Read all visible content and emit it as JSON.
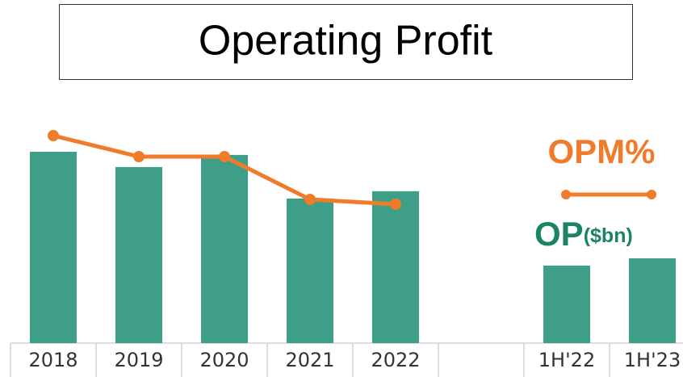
{
  "chart_data": {
    "type": "bar",
    "title": "Operating Profit",
    "categories": [
      "2018",
      "2019",
      "2020",
      "2021",
      "2022",
      null,
      "1H'22",
      "1H'23"
    ],
    "series": [
      {
        "name": "OP($bn)",
        "type": "bar",
        "color": "#3f9e87",
        "values": [
          79,
          72.7,
          77.7,
          59.7,
          62.7,
          null,
          32,
          35
        ]
      },
      {
        "name": "OPM%",
        "type": "line",
        "color": "#f07b2a",
        "axis": "y2",
        "values": [
          25.7,
          23.1,
          23.1,
          17.8,
          17.2,
          null,
          null,
          null
        ]
      }
    ],
    "ylim": [
      0,
      100
    ],
    "y2lim": [
      0,
      30
    ]
  }
}
